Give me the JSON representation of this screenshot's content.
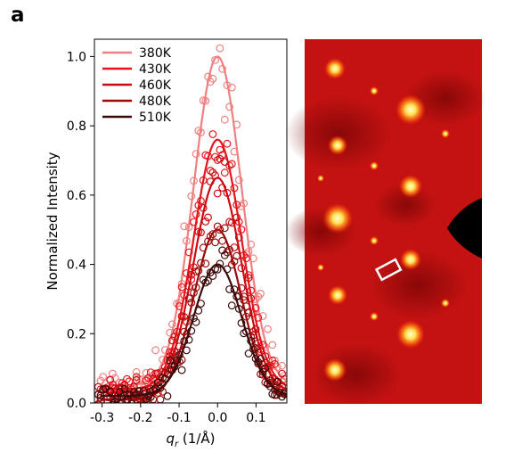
{
  "figure": {
    "panel_label": "a"
  },
  "chart_data": {
    "type": "scatter",
    "xlabel_symbol": "q",
    "xlabel_sub": "r",
    "xlabel_unit": " (1/Å)",
    "ylabel": "Normalized Intensity",
    "xlim": [
      -0.32,
      0.18
    ],
    "ylim": [
      0.0,
      1.05
    ],
    "xticks": [
      -0.3,
      -0.2,
      -0.1,
      0.0,
      0.1
    ],
    "xtick_labels": [
      "-0.3",
      "-0.2",
      "-0.1",
      "0.0",
      "0.1"
    ],
    "yticks": [
      0.0,
      0.2,
      0.4,
      0.6,
      0.8,
      1.0
    ],
    "ytick_labels": [
      "0.0",
      "0.2",
      "0.4",
      "0.6",
      "0.8",
      "1.0"
    ],
    "legend_position": "top-left",
    "series": [
      {
        "name": "380K",
        "color": "#f08080",
        "amplitude": 0.95,
        "center": 0.0,
        "sigma": 0.062,
        "baseline": 0.05,
        "noise": 0.04
      },
      {
        "name": "430K",
        "color": "#e8141c",
        "amplitude": 0.72,
        "center": 0.0,
        "sigma": 0.062,
        "baseline": 0.04,
        "noise": 0.03
      },
      {
        "name": "460K",
        "color": "#cc0a10",
        "amplitude": 0.62,
        "center": 0.0,
        "sigma": 0.062,
        "baseline": 0.03,
        "noise": 0.03
      },
      {
        "name": "480K",
        "color": "#9b0a0a",
        "amplitude": 0.49,
        "center": 0.0,
        "sigma": 0.062,
        "baseline": 0.01,
        "noise": 0.025
      },
      {
        "name": "510K",
        "color": "#3d0a0a",
        "amplitude": 0.38,
        "center": 0.0,
        "sigma": 0.062,
        "baseline": 0.02,
        "noise": 0.025
      }
    ]
  },
  "diffraction_image": {
    "background_color": "#c41212",
    "spot_color": "#ffe04a",
    "frame_color": "#ffffff"
  }
}
